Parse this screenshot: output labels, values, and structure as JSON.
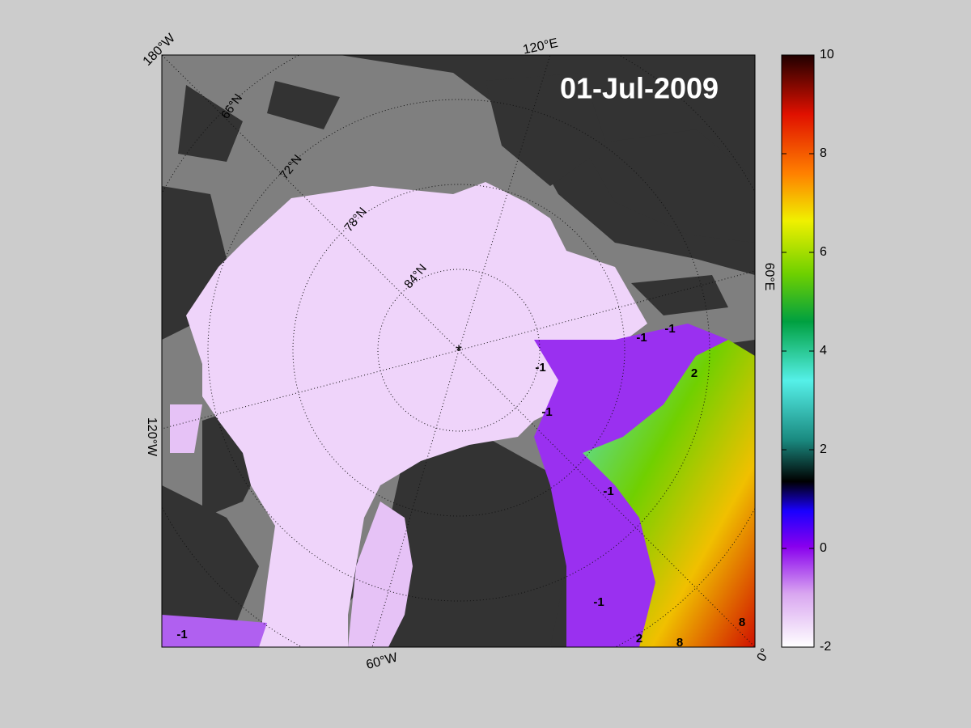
{
  "title": "01-Jul-2009",
  "longitude_labels": [
    "180°W",
    "120°E",
    "60°E",
    "0°",
    "60°W",
    "120°W"
  ],
  "latitude_labels": [
    "66°N",
    "72°N",
    "78°N",
    "84°N"
  ],
  "contour_labels": [
    -1,
    -1,
    -1,
    -1,
    -1,
    -1,
    -1,
    2,
    2,
    8,
    8
  ],
  "colorbar": {
    "lim": [
      -2,
      10
    ],
    "ticks": [
      -2,
      0,
      2,
      4,
      6,
      8,
      10
    ]
  }
}
